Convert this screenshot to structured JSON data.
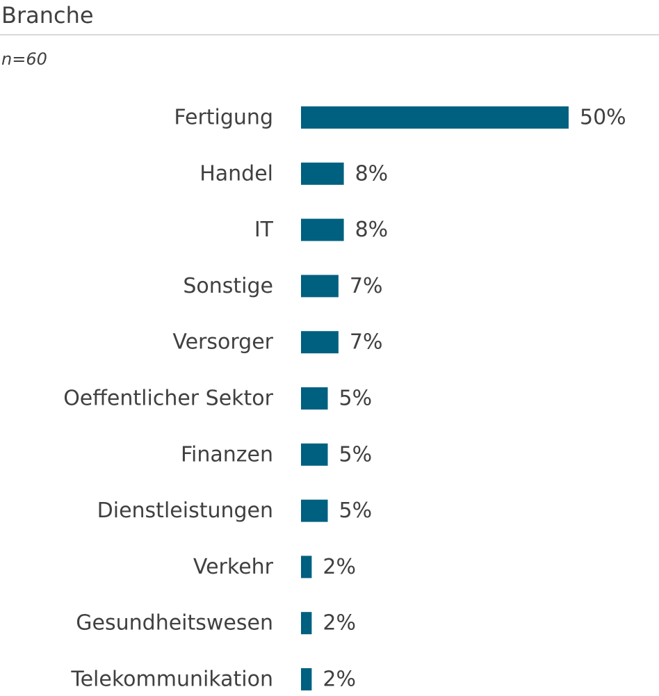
{
  "header": {
    "title": "Branche",
    "subtitle": "n=60"
  },
  "chart_data": {
    "type": "bar",
    "orientation": "horizontal",
    "title": "Branche",
    "subtitle": "n=60",
    "unit": "%",
    "categories": [
      "Fertigung",
      "Handel",
      "IT",
      "Sonstige",
      "Versorger",
      "Oeffentlicher Sektor",
      "Finanzen",
      "Dienstleistungen",
      "Verkehr",
      "Gesundheitswesen",
      "Telekommunikation"
    ],
    "values": [
      50,
      8,
      8,
      7,
      7,
      5,
      5,
      5,
      2,
      2,
      2
    ],
    "value_labels": [
      "50%",
      "8%",
      "8%",
      "7%",
      "7%",
      "5%",
      "5%",
      "5%",
      "2%",
      "2%",
      "2%"
    ],
    "xlim": [
      0,
      50
    ],
    "grid": false,
    "legend": false,
    "colors": {
      "bar": "#006080",
      "text": "#404040",
      "rule": "#d9d9d9"
    }
  }
}
